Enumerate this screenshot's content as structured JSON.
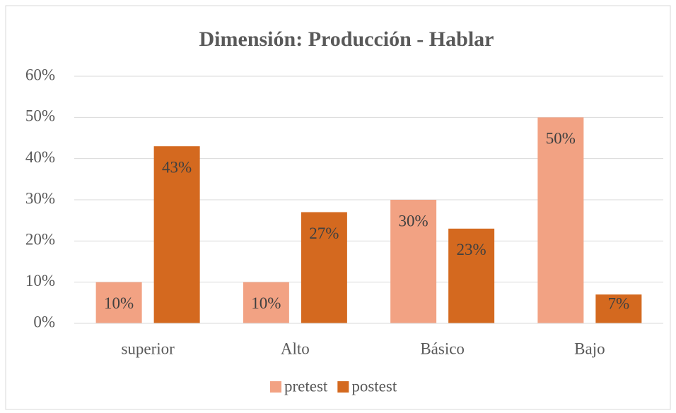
{
  "chart_data": {
    "type": "bar",
    "title": "Dimensión: Producción - Hablar",
    "categories": [
      "superior",
      "Alto",
      "Básico",
      "Bajo"
    ],
    "series": [
      {
        "name": "pretest",
        "color": "#f2a283",
        "values": [
          10,
          10,
          30,
          50
        ],
        "value_labels": [
          "10%",
          "10%",
          "30%",
          "50%"
        ]
      },
      {
        "name": "postest",
        "color": "#d4691f",
        "values": [
          43,
          27,
          23,
          7
        ],
        "value_labels": [
          "43%",
          "27%",
          "23%",
          "7%"
        ]
      }
    ],
    "ylim": [
      0,
      60
    ],
    "yticks": [
      {
        "value": 0,
        "label": "0%"
      },
      {
        "value": 10,
        "label": "10%"
      },
      {
        "value": 20,
        "label": "20%"
      },
      {
        "value": 30,
        "label": "30%"
      },
      {
        "value": 40,
        "label": "40%"
      },
      {
        "value": 50,
        "label": "50%"
      },
      {
        "value": 60,
        "label": "60%"
      }
    ],
    "grid": true,
    "legend": "bottom"
  }
}
